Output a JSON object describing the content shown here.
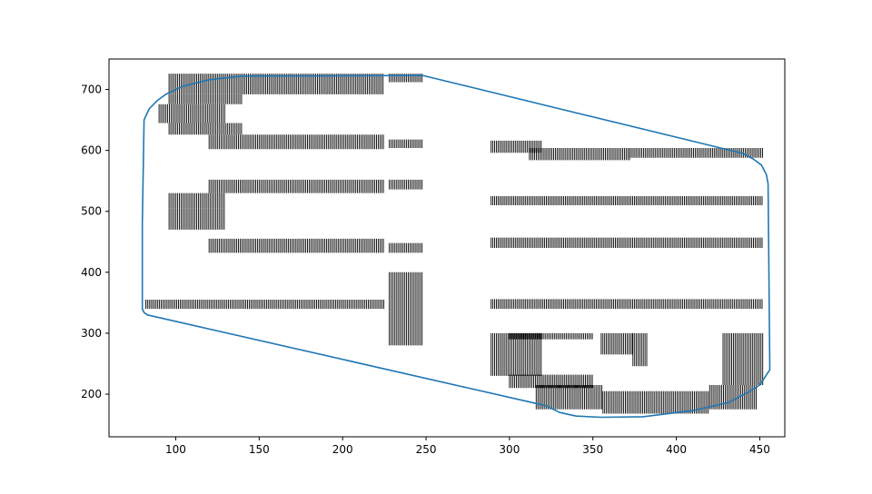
{
  "chart_data": {
    "type": "line",
    "title": "",
    "xlabel": "",
    "ylabel": "",
    "xlim": [
      60,
      465
    ],
    "ylim": [
      130,
      750
    ],
    "xticks": [
      100,
      150,
      200,
      250,
      300,
      350,
      400,
      450
    ],
    "yticks": [
      200,
      300,
      400,
      500,
      600,
      700
    ],
    "grid": false,
    "colors": {
      "outline": "#1f77b4",
      "hatch": "#000000",
      "frame": "#000000"
    },
    "series": [
      {
        "kind": "outline",
        "x": [
          248,
          440,
          446,
          451,
          454,
          455,
          456,
          450,
          443,
          431,
          410,
          380,
          355,
          340,
          330,
          322,
          83,
          81,
          80,
          80,
          80,
          81,
          84,
          89,
          94,
          104,
          120,
          140,
          248
        ],
        "y": [
          723,
          595,
          586,
          576,
          560,
          545,
          240,
          215,
          203,
          186,
          173,
          163,
          162,
          164,
          170,
          181,
          330,
          334,
          340,
          360,
          480,
          650,
          668,
          682,
          692,
          705,
          716,
          722,
          723
        ]
      },
      {
        "kind": "hatched-glyph-rectangles",
        "rects": [
          [
            96,
            225,
            712,
            726
          ],
          [
            96,
            225,
            692,
            712
          ],
          [
            96,
            140,
            676,
            692
          ],
          [
            90,
            130,
            645,
            676
          ],
          [
            96,
            140,
            626,
            645
          ],
          [
            120,
            225,
            602,
            626
          ],
          [
            228,
            248,
            604,
            618
          ],
          [
            228,
            248,
            712,
            726
          ],
          [
            120,
            225,
            530,
            552
          ],
          [
            96,
            130,
            505,
            530
          ],
          [
            96,
            130,
            470,
            505
          ],
          [
            120,
            225,
            432,
            455
          ],
          [
            228,
            248,
            536,
            552
          ],
          [
            228,
            248,
            432,
            448
          ],
          [
            82,
            225,
            340,
            355
          ],
          [
            228,
            248,
            280,
            400
          ],
          [
            289,
            320,
            596,
            616
          ],
          [
            312,
            372,
            584,
            604
          ],
          [
            372,
            452,
            588,
            604
          ],
          [
            289,
            452,
            510,
            525
          ],
          [
            289,
            452,
            440,
            457
          ],
          [
            289,
            452,
            340,
            356
          ],
          [
            289,
            320,
            230,
            300
          ],
          [
            300,
            350,
            290,
            300
          ],
          [
            300,
            350,
            210,
            232
          ],
          [
            316,
            356,
            175,
            215
          ],
          [
            356,
            420,
            168,
            205
          ],
          [
            420,
            448,
            175,
            215
          ],
          [
            355,
            374,
            265,
            300
          ],
          [
            374,
            383,
            246,
            300
          ],
          [
            428,
            452,
            215,
            300
          ]
        ]
      }
    ]
  }
}
